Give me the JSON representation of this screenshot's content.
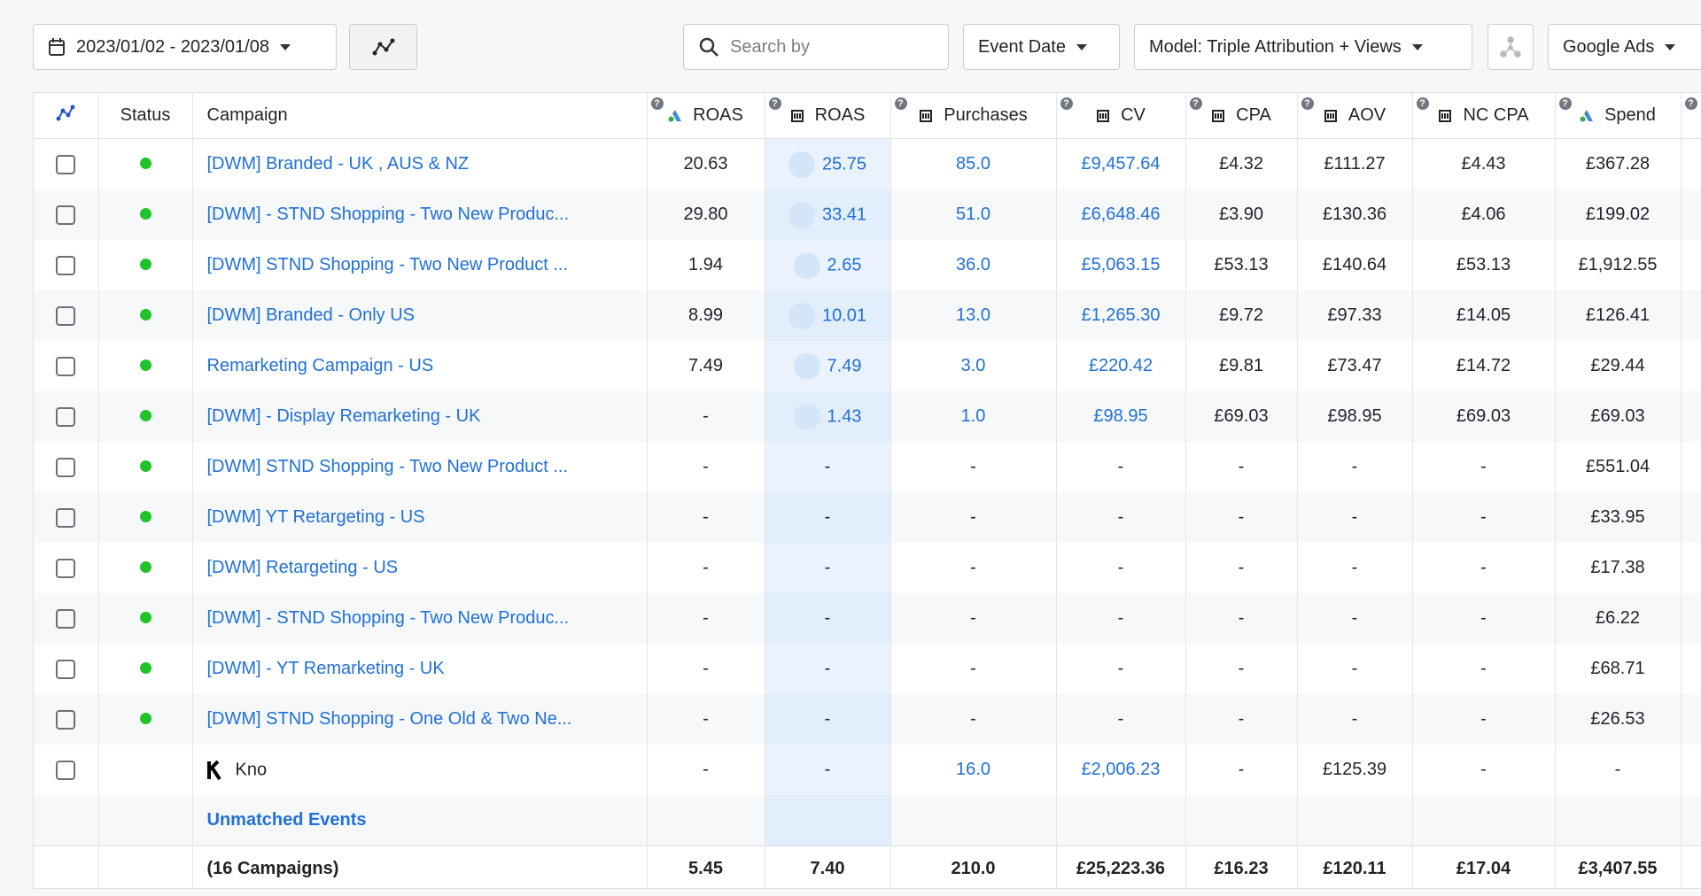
{
  "toolbar": {
    "date_range": "2023/01/02 - 2023/01/08",
    "search_placeholder": "Search by",
    "date_type": "Event Date",
    "model": "Model: Triple Attribution + Views",
    "channel": "Google Ads"
  },
  "table": {
    "columns": [
      "Status",
      "Campaign",
      "ROAS",
      "ROAS",
      "Purchases",
      "CV",
      "CPA",
      "AOV",
      "NC CPA",
      "Spend"
    ],
    "rows": [
      [
        "[DWM] Branded - UK , AUS & NZ",
        "20.63",
        "25.75",
        "85.0",
        "£9,457.64",
        "£4.32",
        "£111.27",
        "£4.43",
        "£367.28"
      ],
      [
        "[DWM] - STND Shopping - Two New Produc...",
        "29.80",
        "33.41",
        "51.0",
        "£6,648.46",
        "£3.90",
        "£130.36",
        "£4.06",
        "£199.02"
      ],
      [
        "[DWM] STND Shopping - Two New Product ...",
        "1.94",
        "2.65",
        "36.0",
        "£5,063.15",
        "£53.13",
        "£140.64",
        "£53.13",
        "£1,912.55"
      ],
      [
        "[DWM] Branded - Only US",
        "8.99",
        "10.01",
        "13.0",
        "£1,265.30",
        "£9.72",
        "£97.33",
        "£14.05",
        "£126.41"
      ],
      [
        "Remarketing Campaign - US",
        "7.49",
        "7.49",
        "3.0",
        "£220.42",
        "£9.81",
        "£73.47",
        "£14.72",
        "£29.44"
      ],
      [
        "[DWM] - Display Remarketing - UK",
        "-",
        "1.43",
        "1.0",
        "£98.95",
        "£69.03",
        "£98.95",
        "£69.03",
        "£69.03"
      ],
      [
        "[DWM] STND Shopping - Two New Product ...",
        "-",
        "-",
        "-",
        "-",
        "-",
        "-",
        "-",
        "£551.04"
      ],
      [
        "[DWM] YT Retargeting - US",
        "-",
        "-",
        "-",
        "-",
        "-",
        "-",
        "-",
        "£33.95"
      ],
      [
        "[DWM] Retargeting - US",
        "-",
        "-",
        "-",
        "-",
        "-",
        "-",
        "-",
        "£17.38"
      ],
      [
        "[DWM] - STND Shopping - Two New Produc...",
        "-",
        "-",
        "-",
        "-",
        "-",
        "-",
        "-",
        "£6.22"
      ],
      [
        "[DWM] - YT Remarketing - UK",
        "-",
        "-",
        "-",
        "-",
        "-",
        "-",
        "-",
        "£68.71"
      ],
      [
        "[DWM] STND Shopping - One Old & Two Ne...",
        "-",
        "-",
        "-",
        "-",
        "-",
        "-",
        "-",
        "£26.53"
      ]
    ],
    "pixel_row": [
      "Kno",
      "-",
      "-",
      "16.0",
      "£2,006.23",
      "-",
      "£125.39",
      "-",
      "-"
    ],
    "unmatched": "Unmatched Events",
    "total": [
      "(16 Campaigns)",
      "5.45",
      "7.40",
      "210.0",
      "£25,223.36",
      "£16.23",
      "£120.11",
      "£17.04",
      "£3,407.55"
    ]
  }
}
